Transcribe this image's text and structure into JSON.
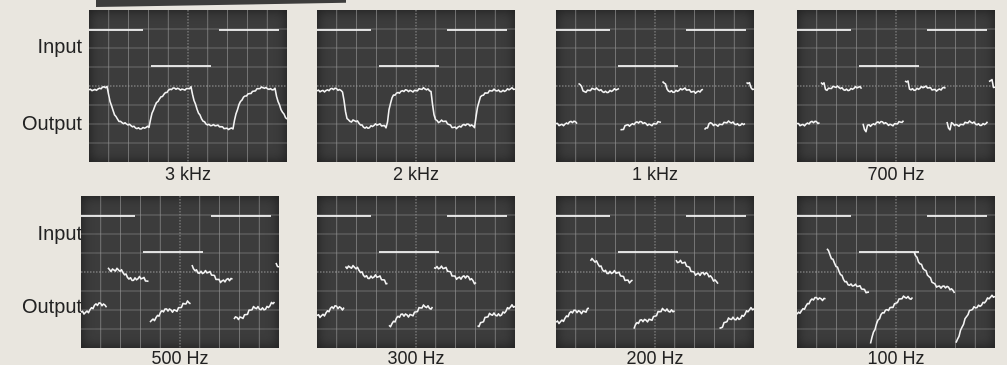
{
  "row_labels": {
    "input": "Input",
    "output": "Output"
  },
  "scopes": [
    {
      "caption": "3 kHz"
    },
    {
      "caption": "2 kHz"
    },
    {
      "caption": "1 kHz"
    },
    {
      "caption": "700 Hz"
    },
    {
      "caption": "500 Hz"
    },
    {
      "caption": "300 Hz"
    },
    {
      "caption": "200 Hz"
    },
    {
      "caption": "100 Hz"
    }
  ],
  "colors": {
    "screen": "#3c3c3c",
    "grid": "#9a9a9a",
    "trace": "#f4f4f4",
    "paper": "#e9e6df"
  }
}
